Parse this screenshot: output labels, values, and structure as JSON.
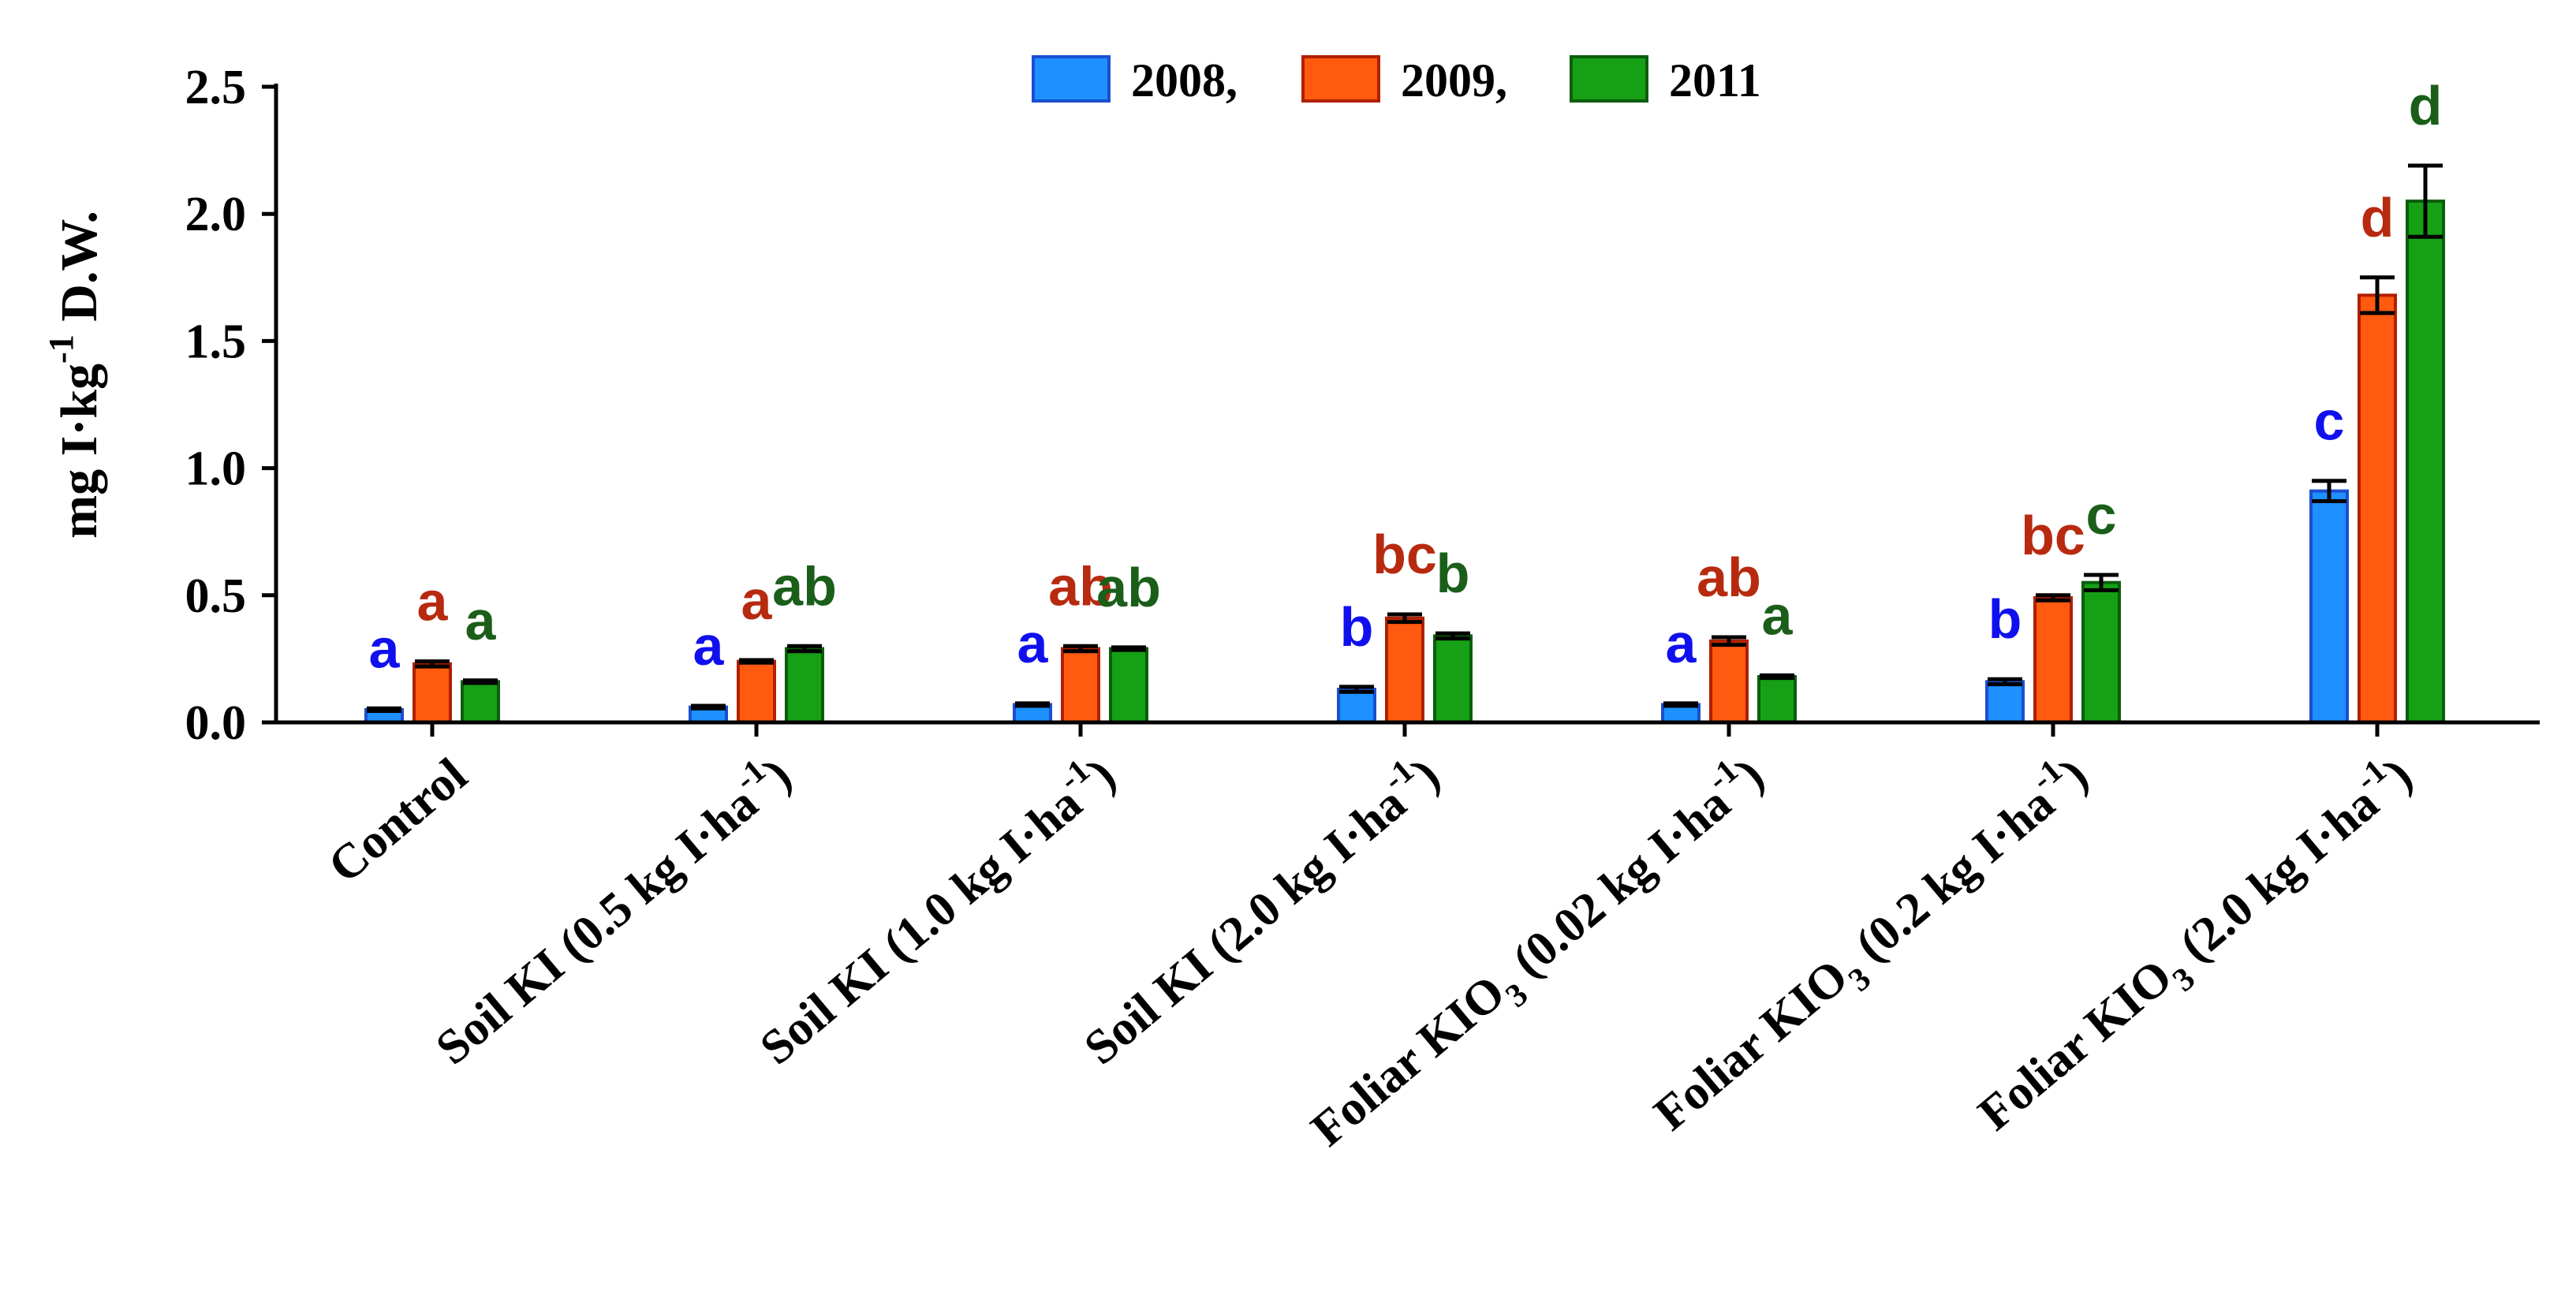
{
  "chart_data": {
    "type": "bar",
    "title": "",
    "xlabel": "",
    "ylabel": {
      "main": "mg I·kg",
      "sup": "-1",
      "tail": " D.W."
    },
    "ylim": [
      0,
      2.5
    ],
    "yticks": [
      "0.0",
      "0.5",
      "1.0",
      "1.5",
      "2.0",
      "2.5"
    ],
    "ytick_values": [
      0,
      0.5,
      1.0,
      1.5,
      2.0,
      2.5
    ],
    "legend_position": "top-center",
    "categories": [
      {
        "pre": "Control",
        "sub": "",
        "post": "",
        "sup": "",
        "tail": ""
      },
      {
        "pre": "Soil KI (0.5 kg I·ha",
        "sub": "",
        "post": "",
        "sup": "-1",
        "tail": ")"
      },
      {
        "pre": "Soil KI (1.0 kg I·ha",
        "sub": "",
        "post": "",
        "sup": "-1",
        "tail": ")"
      },
      {
        "pre": "Soil KI (2.0 kg I·ha",
        "sub": "",
        "post": "",
        "sup": "-1",
        "tail": ")"
      },
      {
        "pre": "Foliar KIO",
        "sub": "3",
        "post": " (0.02 kg I·ha",
        "sup": "-1",
        "tail": ")"
      },
      {
        "pre": "Foliar KIO",
        "sub": "3",
        "post": " (0.2 kg I·ha",
        "sup": "-1",
        "tail": ")"
      },
      {
        "pre": "Foliar KIO",
        "sub": "3",
        "post": " (2.0 kg I·ha",
        "sup": "-1",
        "tail": ")"
      }
    ],
    "series": [
      {
        "name": "2008,",
        "color": "#1e90ff",
        "edge": "#1a4fd0",
        "letter_color": "#1010ee",
        "values": [
          0.05,
          0.06,
          0.07,
          0.13,
          0.07,
          0.16,
          0.91
        ],
        "errors": [
          0.005,
          0.005,
          0.005,
          0.01,
          0.005,
          0.01,
          0.04
        ],
        "letters": [
          "a",
          "a",
          "a",
          "b",
          "a",
          "b",
          "c"
        ]
      },
      {
        "name": "2009,",
        "color": "#ff5a10",
        "edge": "#b02000",
        "letter_color": "#b82a10",
        "values": [
          0.23,
          0.24,
          0.29,
          0.41,
          0.32,
          0.49,
          1.68
        ],
        "errors": [
          0.01,
          0.005,
          0.01,
          0.015,
          0.015,
          0.01,
          0.07
        ],
        "letters": [
          "a",
          "a",
          "ab",
          "bc",
          "ab",
          "bc",
          "d"
        ]
      },
      {
        "name": "2011",
        "color": "#16a016",
        "edge": "#0b5e0b",
        "letter_color": "#1a5e1a",
        "values": [
          0.16,
          0.29,
          0.29,
          0.34,
          0.18,
          0.55,
          2.05
        ],
        "errors": [
          0.005,
          0.01,
          0.005,
          0.01,
          0.005,
          0.03,
          0.14
        ],
        "letters": [
          "a",
          "ab",
          "ab",
          "b",
          "a",
          "c",
          "d"
        ]
      }
    ]
  }
}
